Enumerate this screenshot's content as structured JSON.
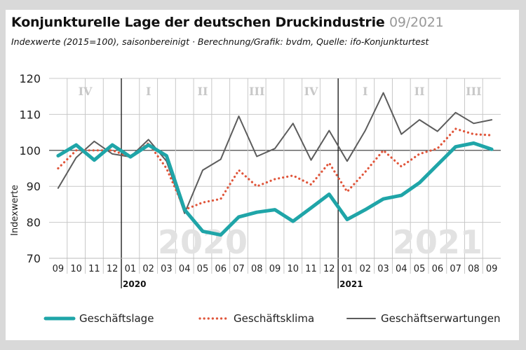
{
  "title": "Konjunkturelle Lage der deutschen Druckindustrie",
  "title_date": "09/2021",
  "subtitle": "Indexwerte (2015=100), saisonbereinigt · Berechnung/Grafik: bvdm, Quelle: ifo-Konjunkturtest",
  "chart_data": {
    "type": "line",
    "ylabel": "Indexwerte",
    "ylim": [
      70,
      120
    ],
    "yticks": [
      70,
      80,
      90,
      100,
      110,
      120
    ],
    "reference_line": 100,
    "x": [
      "09",
      "10",
      "11",
      "12",
      "01",
      "02",
      "03",
      "04",
      "05",
      "06",
      "07",
      "08",
      "09",
      "10",
      "11",
      "12",
      "01",
      "02",
      "03",
      "04",
      "05",
      "06",
      "07",
      "08",
      "09"
    ],
    "year_labels": [
      {
        "label": "2020",
        "index": 4
      },
      {
        "label": "2021",
        "index": 16
      }
    ],
    "watermarks": [
      {
        "label": "2020",
        "index": 8
      },
      {
        "label": "2021",
        "index": 21
      }
    ],
    "quarters": [
      {
        "label": "IV",
        "index": 1.5
      },
      {
        "label": "I",
        "index": 5
      },
      {
        "label": "II",
        "index": 8
      },
      {
        "label": "III",
        "index": 11
      },
      {
        "label": "IV",
        "index": 14
      },
      {
        "label": "I",
        "index": 17
      },
      {
        "label": "II",
        "index": 20
      },
      {
        "label": "III",
        "index": 23
      }
    ],
    "series": [
      {
        "name": "Geschäftslage",
        "color": "#1fa5a8",
        "style": "thick",
        "values": [
          98.5,
          101.5,
          97.3,
          101.5,
          98.2,
          101.5,
          98.5,
          83.5,
          77.5,
          76.5,
          81.5,
          82.8,
          83.5,
          80.3,
          84,
          87.8,
          80.8,
          83.5,
          86.5,
          87.5,
          91,
          96,
          101,
          102,
          100.3
        ]
      },
      {
        "name": "Geschäftsklima",
        "color": "#e0553a",
        "style": "dotted",
        "values": [
          95,
          100,
          100,
          100,
          98.2,
          102,
          95,
          83.5,
          85.5,
          86.5,
          94.5,
          90,
          92,
          93,
          90.5,
          96.5,
          88.5,
          94,
          100,
          95.5,
          99,
          100.5,
          106,
          104.5,
          104.2
        ]
      },
      {
        "name": "Geschäftserwartungen",
        "color": "#5c5c5c",
        "style": "thin",
        "values": [
          89.5,
          98,
          102.5,
          99,
          98.2,
          103,
          97,
          82.5,
          94.5,
          97.5,
          109.5,
          98.3,
          100.5,
          107.5,
          97.3,
          105.5,
          97,
          105.5,
          116,
          104.5,
          108.5,
          105.3,
          110.5,
          107.5,
          108.5
        ]
      }
    ]
  }
}
